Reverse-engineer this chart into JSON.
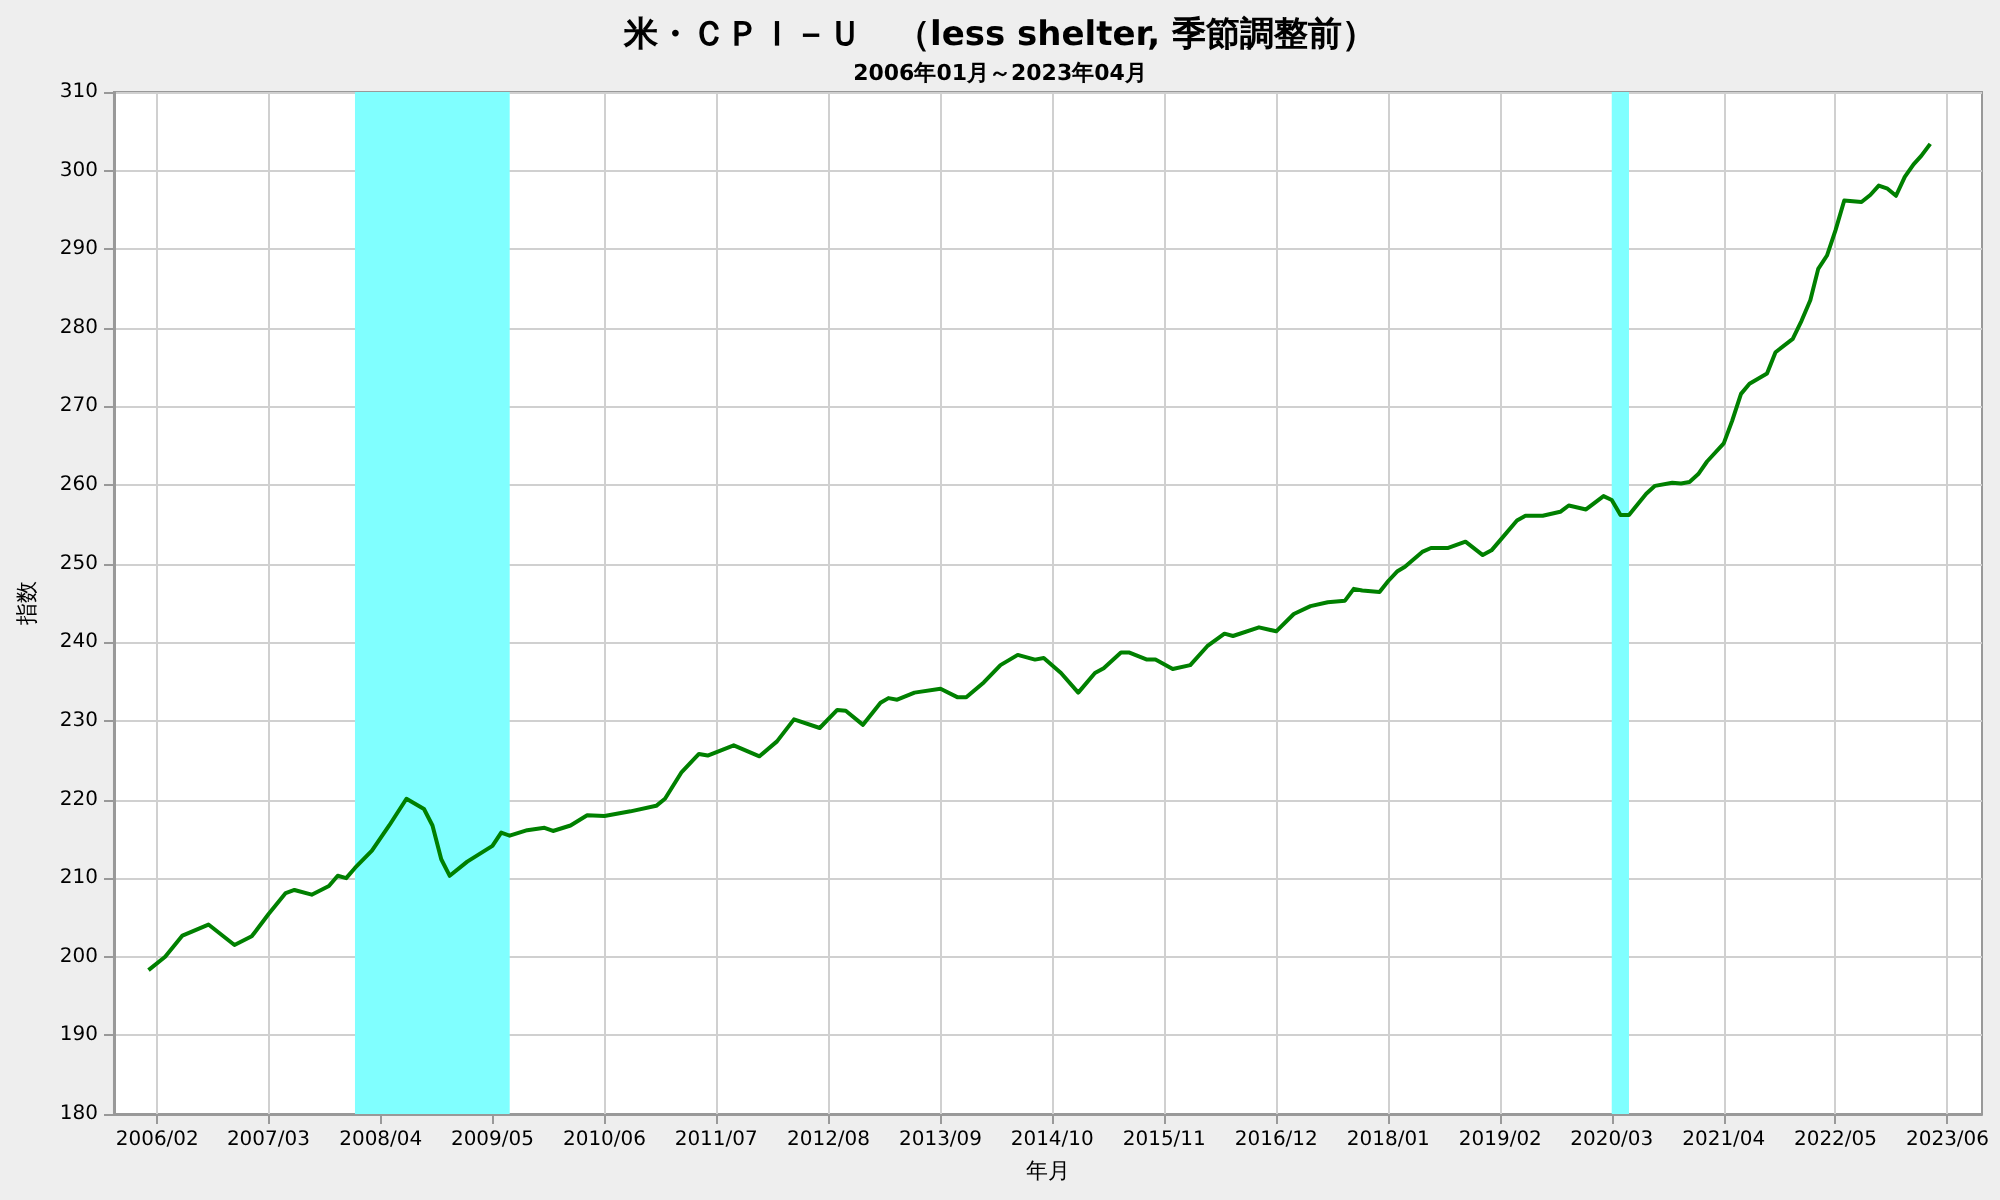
{
  "chart_data": {
    "type": "line",
    "title": "米・ＣＰＩ－Ｕ　（less shelter, 季節調整前）",
    "subtitle": "2006年01月～2023年04月",
    "xlabel": "年月",
    "ylabel": "指数",
    "x": [
      "2006-01",
      "2006-03",
      "2006-05",
      "2006-08",
      "2006-11",
      "2007-01",
      "2007-03",
      "2007-05",
      "2007-06",
      "2007-08",
      "2007-10",
      "2007-11",
      "2007-12",
      "2008-01",
      "2008-03",
      "2008-05",
      "2008-07",
      "2008-09",
      "2008-10",
      "2008-11",
      "2008-12",
      "2009-02",
      "2009-05",
      "2009-06",
      "2009-07",
      "2009-09",
      "2009-11",
      "2009-12",
      "2010-02",
      "2010-04",
      "2010-06",
      "2010-09",
      "2010-12",
      "2011-01",
      "2011-03",
      "2011-05",
      "2011-06",
      "2011-09",
      "2011-12",
      "2012-02",
      "2012-04",
      "2012-07",
      "2012-09",
      "2012-10",
      "2012-12",
      "2013-02",
      "2013-03",
      "2013-04",
      "2013-06",
      "2013-09",
      "2013-11",
      "2013-12",
      "2014-02",
      "2014-04",
      "2014-06",
      "2014-08",
      "2014-09",
      "2014-11",
      "2015-01",
      "2015-03",
      "2015-04",
      "2015-06",
      "2015-07",
      "2015-09",
      "2015-10",
      "2015-12",
      "2016-02",
      "2016-04",
      "2016-06",
      "2016-07",
      "2016-10",
      "2016-12",
      "2017-02",
      "2017-04",
      "2017-06",
      "2017-08",
      "2017-09",
      "2017-10",
      "2017-12",
      "2018-01",
      "2018-02",
      "2018-03",
      "2018-05",
      "2018-06",
      "2018-08",
      "2018-10",
      "2018-12",
      "2019-01",
      "2019-02",
      "2019-04",
      "2019-05",
      "2019-07",
      "2019-09",
      "2019-10",
      "2019-12",
      "2020-02",
      "2020-03",
      "2020-04",
      "2020-05",
      "2020-07",
      "2020-08",
      "2020-10",
      "2020-11",
      "2020-12",
      "2021-01",
      "2021-02",
      "2021-04",
      "2021-05",
      "2021-06",
      "2021-07",
      "2021-09",
      "2021-10",
      "2021-12",
      "2022-01",
      "2022-02",
      "2022-03",
      "2022-04",
      "2022-05",
      "2022-06",
      "2022-08",
      "2022-09",
      "2022-10",
      "2022-11",
      "2022-12",
      "2023-01",
      "2023-02",
      "2023-03",
      "2023-04"
    ],
    "series": [
      {
        "color": "#008000",
        "values": [
          198.3,
          200,
          202.7,
          204.1,
          201.5,
          202.6,
          205.4,
          208.1,
          208.5,
          207.9,
          209,
          210.3,
          210,
          211.3,
          213.5,
          216.7,
          220.1,
          218.8,
          216.7,
          212.4,
          210.3,
          212.1,
          214.1,
          215.8,
          215.4,
          216.1,
          216.4,
          216,
          216.7,
          218,
          217.9,
          218.5,
          219.2,
          220.1,
          223.5,
          225.8,
          225.6,
          226.9,
          225.5,
          227.4,
          230.2,
          229.1,
          231.4,
          231.3,
          229.5,
          232.3,
          232.9,
          232.7,
          233.6,
          234.1,
          233,
          233,
          234.9,
          237.1,
          238.4,
          237.8,
          238,
          236.1,
          233.6,
          236.1,
          236.7,
          238.7,
          238.7,
          237.8,
          237.8,
          236.6,
          237.1,
          239.5,
          241.1,
          240.8,
          241.9,
          241.4,
          243.6,
          244.6,
          245.1,
          245.3,
          246.8,
          246.6,
          246.4,
          247.8,
          249,
          249.6,
          251.5,
          252,
          252,
          252.8,
          251.1,
          251.7,
          253,
          255.5,
          256.1,
          256.1,
          256.6,
          257.4,
          256.9,
          258.6,
          258.1,
          256.2,
          256.2,
          258.9,
          259.9,
          260.3,
          260.2,
          260.4,
          261.4,
          263,
          265.3,
          268.2,
          271.6,
          272.9,
          274.2,
          276.9,
          278.6,
          280.9,
          283.5,
          287.5,
          289.2,
          292.4,
          296.2,
          296,
          296.9,
          298.1,
          297.7,
          296.8,
          299.2,
          300.8,
          301.9,
          303.4
        ]
      }
    ],
    "xlim": [
      "2005-09",
      "2023-10"
    ],
    "xticks": [
      {
        "value": "2006-02",
        "label": "2006/02"
      },
      {
        "value": "2007-03",
        "label": "2007/03"
      },
      {
        "value": "2008-04",
        "label": "2008/04"
      },
      {
        "value": "2009-05",
        "label": "2009/05"
      },
      {
        "value": "2010-06",
        "label": "2010/06"
      },
      {
        "value": "2011-07",
        "label": "2011/07"
      },
      {
        "value": "2012-08",
        "label": "2012/08"
      },
      {
        "value": "2013-09",
        "label": "2013/09"
      },
      {
        "value": "2014-10",
        "label": "2014/10"
      },
      {
        "value": "2015-11",
        "label": "2015/11"
      },
      {
        "value": "2016-12",
        "label": "2016/12"
      },
      {
        "value": "2018-01",
        "label": "2018/01"
      },
      {
        "value": "2019-02",
        "label": "2019/02"
      },
      {
        "value": "2020-03",
        "label": "2020/03"
      },
      {
        "value": "2021-04",
        "label": "2021/04"
      },
      {
        "value": "2022-05",
        "label": "2022/05"
      },
      {
        "value": "2023-06",
        "label": "2023/06"
      }
    ],
    "ylim": [
      180,
      310
    ],
    "yticks": [
      180,
      190,
      200,
      210,
      220,
      230,
      240,
      250,
      260,
      270,
      280,
      290,
      300,
      310
    ],
    "bands": [
      {
        "axis": "x",
        "from": "2008-01",
        "to": "2009-07",
        "color": "#80ffff"
      },
      {
        "axis": "x",
        "from": "2020-03",
        "to": "2020-05",
        "color": "#80ffff"
      }
    ],
    "grid": true,
    "marker": "none",
    "line_style": "solid"
  }
}
